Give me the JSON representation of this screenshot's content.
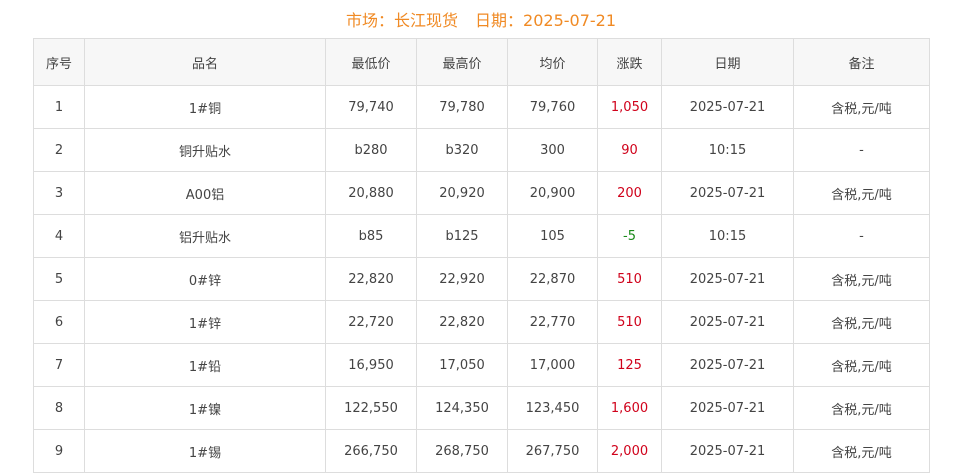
{
  "header": {
    "market_label": "市场：长江现货",
    "date_label": "日期：2025-07-21"
  },
  "colors": {
    "title": "#f08a24",
    "up": "#d0021b",
    "down": "#1a8a1a"
  },
  "columns": [
    "序号",
    "品名",
    "最低价",
    "最高价",
    "均价",
    "涨跌",
    "日期",
    "备注"
  ],
  "rows": [
    {
      "no": "1",
      "name": "1#铜",
      "low": "79,740",
      "high": "79,780",
      "avg": "79,760",
      "change": "1,050",
      "dir": "up",
      "date": "2025-07-21",
      "note": "含税,元/吨"
    },
    {
      "no": "2",
      "name": "铜升贴水",
      "low": "b280",
      "high": "b320",
      "avg": "300",
      "change": "90",
      "dir": "up",
      "date": "10:15",
      "note": "-"
    },
    {
      "no": "3",
      "name": "A00铝",
      "low": "20,880",
      "high": "20,920",
      "avg": "20,900",
      "change": "200",
      "dir": "up",
      "date": "2025-07-21",
      "note": "含税,元/吨"
    },
    {
      "no": "4",
      "name": "铝升贴水",
      "low": "b85",
      "high": "b125",
      "avg": "105",
      "change": "-5",
      "dir": "down",
      "date": "10:15",
      "note": "-"
    },
    {
      "no": "5",
      "name": "0#锌",
      "low": "22,820",
      "high": "22,920",
      "avg": "22,870",
      "change": "510",
      "dir": "up",
      "date": "2025-07-21",
      "note": "含税,元/吨"
    },
    {
      "no": "6",
      "name": "1#锌",
      "low": "22,720",
      "high": "22,820",
      "avg": "22,770",
      "change": "510",
      "dir": "up",
      "date": "2025-07-21",
      "note": "含税,元/吨"
    },
    {
      "no": "7",
      "name": "1#铅",
      "low": "16,950",
      "high": "17,050",
      "avg": "17,000",
      "change": "125",
      "dir": "up",
      "date": "2025-07-21",
      "note": "含税,元/吨"
    },
    {
      "no": "8",
      "name": "1#镍",
      "low": "122,550",
      "high": "124,350",
      "avg": "123,450",
      "change": "1,600",
      "dir": "up",
      "date": "2025-07-21",
      "note": "含税,元/吨"
    },
    {
      "no": "9",
      "name": "1#锡",
      "low": "266,750",
      "high": "268,750",
      "avg": "267,750",
      "change": "2,000",
      "dir": "up",
      "date": "2025-07-21",
      "note": "含税,元/吨"
    }
  ]
}
